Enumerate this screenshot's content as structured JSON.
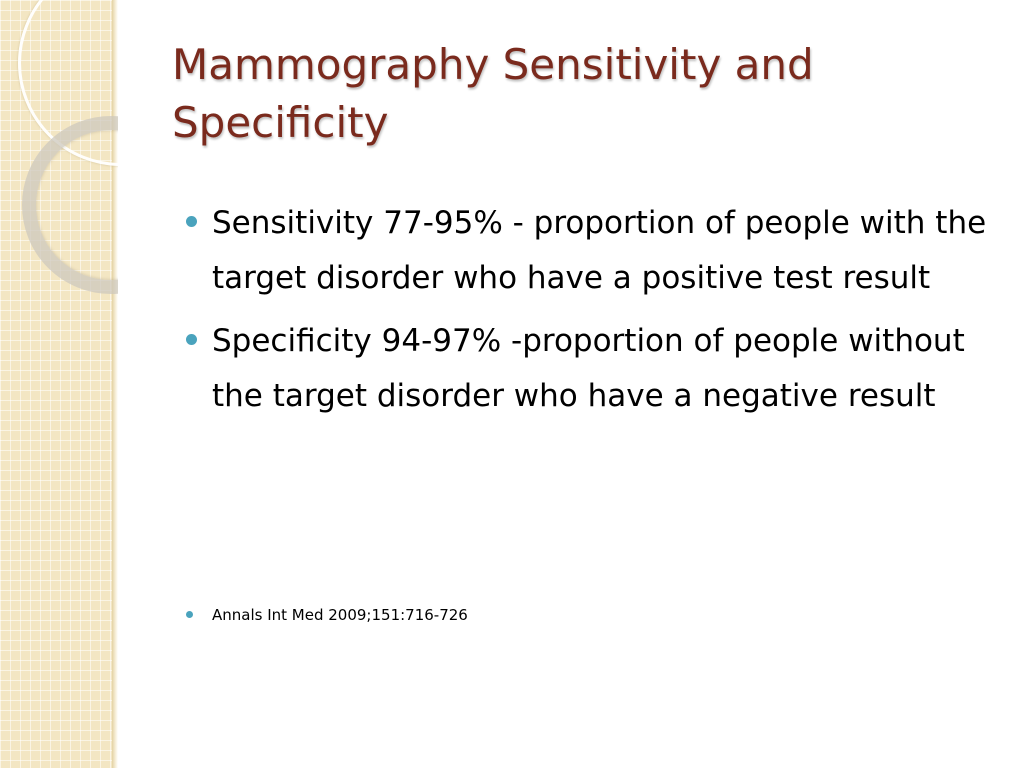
{
  "slide": {
    "title": "Mammography Sensitivity and Specificity",
    "bullets": [
      "Sensitivity 77-95%  - proportion of people with the target disorder who have  a positive test result",
      "Specificity 94-97% -proportion of people without the target disorder who have a negative result"
    ],
    "reference": "Annals Int Med 2009;151:716-726"
  },
  "colors": {
    "title": "#7a2a1d",
    "bullet_marker": "#4aa3bd",
    "side_band": "#f3e6c3"
  }
}
